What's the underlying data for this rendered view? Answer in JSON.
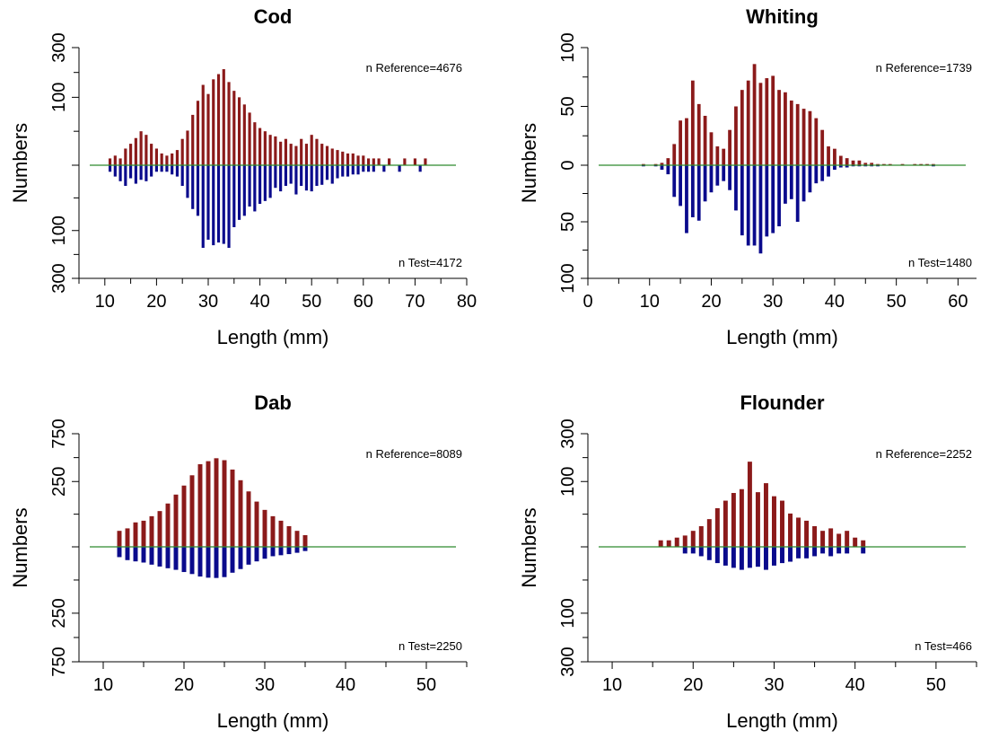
{
  "figure": {
    "colors": {
      "reference": "#8b1a1a",
      "test": "#0a0a8c",
      "baseline": "#2e8b2e",
      "axis": "#000000"
    }
  },
  "chart_data": [
    {
      "type": "bar",
      "title": "Cod",
      "xlabel": "Length (mm)",
      "ylabel": "Numbers",
      "xlim": [
        5,
        80
      ],
      "xticks": [
        10,
        20,
        30,
        40,
        50,
        60,
        70,
        80
      ],
      "ylim_ref": 300,
      "ylim_test": 300,
      "yticks_ref": [
        100,
        300
      ],
      "yticks_test": [
        100,
        300
      ],
      "y_scale": "sqrt",
      "ref_label": "n Reference=4676",
      "test_label": "n Test=4172",
      "series": [
        {
          "name": "Reference",
          "x": [
            11,
            12,
            13,
            14,
            15,
            16,
            17,
            18,
            19,
            20,
            21,
            22,
            23,
            24,
            25,
            26,
            27,
            28,
            29,
            30,
            31,
            32,
            33,
            34,
            35,
            36,
            37,
            38,
            39,
            40,
            41,
            42,
            43,
            44,
            45,
            46,
            47,
            48,
            49,
            50,
            51,
            52,
            53,
            54,
            55,
            56,
            57,
            58,
            59,
            60,
            61,
            62,
            63,
            64,
            65,
            66,
            67,
            68,
            69,
            70,
            71,
            72
          ],
          "values": [
            1,
            2,
            1,
            6,
            10,
            16,
            25,
            20,
            10,
            6,
            3,
            2,
            3,
            5,
            15,
            26,
            55,
            90,
            140,
            110,
            160,
            180,
            200,
            150,
            120,
            100,
            80,
            60,
            40,
            30,
            25,
            20,
            18,
            12,
            15,
            10,
            8,
            15,
            10,
            20,
            15,
            10,
            8,
            6,
            5,
            4,
            3,
            3,
            2,
            2,
            1,
            1,
            1,
            0,
            1,
            0,
            0,
            1,
            0,
            1,
            0,
            1
          ]
        },
        {
          "name": "Test",
          "x": [
            11,
            12,
            13,
            14,
            15,
            16,
            17,
            18,
            19,
            20,
            21,
            22,
            23,
            24,
            25,
            26,
            27,
            28,
            29,
            30,
            31,
            32,
            33,
            34,
            35,
            36,
            37,
            38,
            39,
            40,
            41,
            42,
            43,
            44,
            45,
            46,
            47,
            48,
            49,
            50,
            51,
            52,
            53,
            54,
            55,
            56,
            57,
            58,
            59,
            60,
            61,
            62,
            63,
            64,
            65,
            66,
            67,
            68,
            69,
            70,
            71,
            72
          ],
          "values": [
            1,
            3,
            6,
            10,
            4,
            8,
            5,
            6,
            3,
            1,
            1,
            1,
            2,
            3,
            10,
            25,
            45,
            60,
            160,
            130,
            150,
            140,
            145,
            160,
            90,
            70,
            60,
            40,
            50,
            35,
            30,
            25,
            12,
            16,
            10,
            8,
            20,
            10,
            15,
            16,
            10,
            9,
            5,
            8,
            4,
            3,
            3,
            2,
            2,
            1,
            1,
            1,
            0,
            1,
            0,
            0,
            1,
            0,
            0,
            0,
            1,
            0
          ]
        }
      ]
    },
    {
      "type": "bar",
      "title": "Whiting",
      "xlabel": "Length (mm)",
      "ylabel": "Numbers",
      "xlim": [
        0,
        63
      ],
      "xticks": [
        0,
        10,
        20,
        30,
        40,
        50,
        60
      ],
      "ylim_ref": 100,
      "ylim_test": 100,
      "yticks_ref": [
        50,
        100
      ],
      "yticks_test": [
        50,
        100
      ],
      "y_scale": "linear",
      "ref_label": "n Reference=1739",
      "test_label": "n Test=1480",
      "series": [
        {
          "name": "Reference",
          "x": [
            9,
            10,
            11,
            12,
            13,
            14,
            15,
            16,
            17,
            18,
            19,
            20,
            21,
            22,
            23,
            24,
            25,
            26,
            27,
            28,
            29,
            30,
            31,
            32,
            33,
            34,
            35,
            36,
            37,
            38,
            39,
            40,
            41,
            42,
            43,
            44,
            45,
            46,
            47,
            48,
            49,
            50,
            51,
            52,
            53,
            54,
            55,
            56
          ],
          "values": [
            1,
            0,
            1,
            2,
            6,
            18,
            38,
            40,
            72,
            52,
            42,
            28,
            16,
            14,
            30,
            50,
            64,
            72,
            86,
            70,
            74,
            76,
            64,
            62,
            55,
            52,
            48,
            46,
            40,
            30,
            16,
            14,
            8,
            6,
            4,
            4,
            2,
            2,
            1,
            1,
            1,
            0,
            1,
            0,
            1,
            1,
            1,
            1
          ]
        },
        {
          "name": "Test",
          "x": [
            9,
            10,
            11,
            12,
            13,
            14,
            15,
            16,
            17,
            18,
            19,
            20,
            21,
            22,
            23,
            24,
            25,
            26,
            27,
            28,
            29,
            30,
            31,
            32,
            33,
            34,
            35,
            36,
            37,
            38,
            39,
            40,
            41,
            42,
            43,
            44,
            45,
            46,
            47,
            48,
            49,
            50,
            51,
            52,
            53,
            54,
            55,
            56
          ],
          "values": [
            1,
            0,
            1,
            4,
            8,
            28,
            36,
            60,
            46,
            49,
            32,
            24,
            18,
            14,
            22,
            40,
            62,
            71,
            71,
            78,
            63,
            60,
            54,
            34,
            30,
            50,
            32,
            24,
            16,
            14,
            10,
            4,
            2,
            2,
            1,
            1,
            1,
            1,
            1,
            0,
            0,
            0,
            0,
            0,
            0,
            0,
            0,
            1
          ]
        }
      ]
    },
    {
      "type": "bar",
      "title": "Dab",
      "xlabel": "Length (mm)",
      "ylabel": "Numbers",
      "xlim": [
        7,
        55
      ],
      "xticks": [
        10,
        20,
        30,
        40,
        50
      ],
      "ylim_ref": 750,
      "ylim_test": 750,
      "yticks_ref": [
        250,
        750
      ],
      "yticks_test": [
        250,
        750
      ],
      "y_scale": "sqrt",
      "ref_label": "n Reference=8089",
      "test_label": "n Test=2250",
      "series": [
        {
          "name": "Reference",
          "x": [
            12,
            13,
            14,
            15,
            16,
            17,
            18,
            19,
            20,
            21,
            22,
            23,
            24,
            25,
            26,
            27,
            28,
            29,
            30,
            31,
            32,
            33,
            34,
            35
          ],
          "values": [
            15,
            20,
            35,
            40,
            55,
            75,
            110,
            160,
            220,
            300,
            400,
            430,
            460,
            440,
            350,
            260,
            180,
            120,
            80,
            55,
            40,
            25,
            15,
            8
          ]
        },
        {
          "name": "Test",
          "x": [
            12,
            13,
            14,
            15,
            16,
            17,
            18,
            19,
            20,
            21,
            22,
            23,
            24,
            25,
            26,
            27,
            28,
            29,
            30,
            31,
            32,
            33,
            34,
            35
          ],
          "values": [
            6,
            10,
            12,
            14,
            18,
            22,
            26,
            30,
            36,
            42,
            50,
            54,
            55,
            52,
            38,
            28,
            18,
            12,
            8,
            5,
            4,
            3,
            2,
            1
          ]
        }
      ]
    },
    {
      "type": "bar",
      "title": "Flounder",
      "xlabel": "Length (mm)",
      "ylabel": "Numbers",
      "xlim": [
        7,
        55
      ],
      "xticks": [
        10,
        20,
        30,
        40,
        50
      ],
      "ylim_ref": 300,
      "ylim_test": 300,
      "yticks_ref": [
        100,
        300
      ],
      "yticks_test": [
        100,
        300
      ],
      "y_scale": "sqrt",
      "ref_label": "n Reference=2252",
      "test_label": "n Test=466",
      "series": [
        {
          "name": "Reference",
          "x": [
            16,
            17,
            18,
            19,
            20,
            21,
            22,
            23,
            24,
            25,
            26,
            27,
            28,
            29,
            30,
            31,
            32,
            33,
            34,
            35,
            36,
            37,
            38,
            39,
            40,
            41
          ],
          "values": [
            1,
            1,
            2,
            3,
            6,
            10,
            18,
            35,
            50,
            68,
            78,
            170,
            70,
            95,
            60,
            50,
            26,
            20,
            16,
            10,
            6,
            8,
            4,
            6,
            2,
            1
          ]
        },
        {
          "name": "Test",
          "x": [
            16,
            17,
            18,
            19,
            20,
            21,
            22,
            23,
            24,
            25,
            26,
            27,
            28,
            29,
            30,
            31,
            32,
            33,
            34,
            35,
            36,
            37,
            38,
            39,
            40,
            41
          ],
          "values": [
            0,
            0,
            0,
            1,
            1,
            2,
            4,
            6,
            8,
            10,
            12,
            10,
            9,
            12,
            8,
            6,
            5,
            3,
            3,
            2,
            1,
            2,
            1,
            1,
            0,
            1
          ]
        }
      ]
    }
  ]
}
